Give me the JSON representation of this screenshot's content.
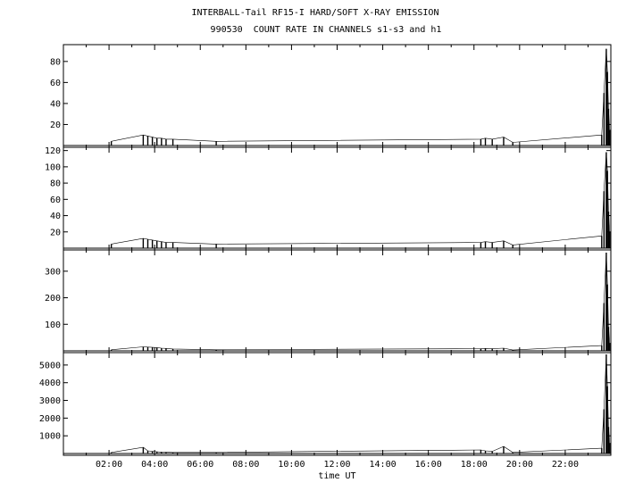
{
  "title_line1": "INTERBALL-Tail RF15-I HARD/SOFT X-RAY EMISSION",
  "title_line2": "990530  COUNT RATE IN CHANNELS s1-s3 and h1",
  "chart_data": {
    "type": "line",
    "xlabel": "time UT",
    "x_unit": "hours UT",
    "xlim": [
      0,
      24
    ],
    "x_ticks": [
      {
        "h": 2,
        "label": "02:00"
      },
      {
        "h": 4,
        "label": "04:00"
      },
      {
        "h": 6,
        "label": "06:00"
      },
      {
        "h": 8,
        "label": "08:00"
      },
      {
        "h": 10,
        "label": "10:00"
      },
      {
        "h": 12,
        "label": "12:00"
      },
      {
        "h": 14,
        "label": "14:00"
      },
      {
        "h": 16,
        "label": "16:00"
      },
      {
        "h": 18,
        "label": "18:00"
      },
      {
        "h": 20,
        "label": "20:00"
      },
      {
        "h": 22,
        "label": "22:00"
      }
    ],
    "panels": [
      {
        "ylim": [
          0,
          96
        ],
        "yticks": [
          20,
          40,
          60,
          80
        ],
        "series": [
          {
            "x": [
              2.1,
              3.5,
              3.7,
              3.9,
              4.1,
              4.3,
              4.5,
              4.8,
              6.7,
              18.3,
              18.5,
              18.8,
              19.3,
              19.7,
              23.6,
              23.7,
              23.8,
              23.85,
              23.9,
              23.95
            ],
            "y": [
              4,
              10,
              9,
              8,
              7,
              7,
              6,
              6,
              4,
              6,
              7,
              6,
              8,
              3,
              10,
              50,
              92,
              70,
              35,
              15
            ]
          }
        ]
      },
      {
        "ylim": [
          0,
          124
        ],
        "yticks": [
          20,
          40,
          60,
          80,
          100,
          120
        ],
        "series": [
          {
            "x": [
              2.1,
              3.5,
              3.7,
              3.9,
              4.1,
              4.3,
              4.5,
              4.8,
              6.7,
              18.3,
              18.5,
              18.8,
              19.3,
              19.7,
              23.6,
              23.7,
              23.8,
              23.85,
              23.9,
              23.95
            ],
            "y": [
              5,
              12,
              11,
              10,
              9,
              8,
              7,
              7,
              5,
              7,
              8,
              7,
              9,
              4,
              15,
              70,
              118,
              95,
              45,
              20
            ]
          }
        ]
      },
      {
        "ylim": [
          0,
          380
        ],
        "yticks": [
          100,
          200,
          300
        ],
        "series": [
          {
            "x": [
              2.1,
              3.5,
              3.7,
              3.9,
              4.1,
              4.3,
              4.5,
              4.8,
              6.7,
              18.3,
              18.5,
              18.8,
              19.3,
              19.7,
              23.6,
              23.7,
              23.8,
              23.85,
              23.9,
              23.95
            ],
            "y": [
              4,
              15,
              14,
              13,
              12,
              10,
              9,
              7,
              4,
              8,
              9,
              8,
              10,
              3,
              20,
              180,
              370,
              250,
              90,
              30
            ]
          }
        ]
      },
      {
        "ylim": [
          0,
          5700
        ],
        "yticks": [
          1000,
          2000,
          3000,
          4000,
          5000
        ],
        "series": [
          {
            "x": [
              2.1,
              3.5,
              3.7,
              3.9,
              4.1,
              4.3,
              4.5,
              4.8,
              6.7,
              18.3,
              18.5,
              18.8,
              19.3,
              19.7,
              23.6,
              23.7,
              23.8,
              23.85,
              23.9,
              23.95
            ],
            "y": [
              60,
              350,
              150,
              120,
              100,
              80,
              70,
              60,
              60,
              200,
              150,
              120,
              400,
              60,
              300,
              2500,
              5600,
              3800,
              1500,
              600
            ]
          }
        ]
      }
    ]
  }
}
